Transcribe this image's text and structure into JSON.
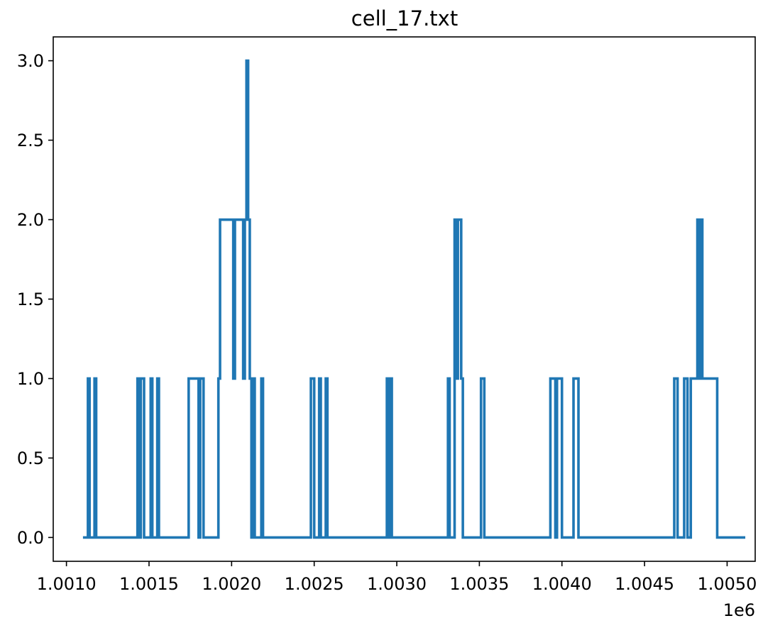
{
  "chart_data": {
    "type": "line",
    "title": "cell_17.txt",
    "xlabel": "",
    "ylabel": "",
    "x_offset_label": "1e6",
    "xlim": [
      1.00092,
      1.00517
    ],
    "ylim": [
      -0.15,
      3.15
    ],
    "grid": false,
    "xticks": [
      1.001,
      1.0015,
      1.002,
      1.0025,
      1.003,
      1.0035,
      1.004,
      1.0045,
      1.005
    ],
    "xtick_labels": [
      "1.0010",
      "1.0015",
      "1.0020",
      "1.0025",
      "1.0030",
      "1.0035",
      "1.0040",
      "1.0045",
      "1.0050"
    ],
    "yticks": [
      0.0,
      0.5,
      1.0,
      1.5,
      2.0,
      2.5,
      3.0
    ],
    "ytick_labels": [
      "0.0",
      "0.5",
      "1.0",
      "1.5",
      "2.0",
      "2.5",
      "3.0"
    ],
    "series": [
      {
        "color": "#1f77b4",
        "step": "post",
        "x": [
          1.0011,
          1.00113,
          1.00114,
          1.00117,
          1.00118,
          1.00143,
          1.00144,
          1.00145,
          1.00147,
          1.00151,
          1.00152,
          1.00155,
          1.00156,
          1.00174,
          1.0018,
          1.00181,
          1.00183,
          1.00192,
          1.00193,
          1.00201,
          1.00202,
          1.00207,
          1.00208,
          1.00209,
          1.0021,
          1.00211,
          1.00212,
          1.00213,
          1.00214,
          1.00218,
          1.00219,
          1.00248,
          1.0025,
          1.00253,
          1.00254,
          1.00257,
          1.00258,
          1.00294,
          1.00295,
          1.00296,
          1.00297,
          1.00298,
          1.00331,
          1.00332,
          1.00335,
          1.00336,
          1.00337,
          1.00339,
          1.0034,
          1.00351,
          1.00353,
          1.00393,
          1.00396,
          1.00397,
          1.004,
          1.00407,
          1.0041,
          1.00468,
          1.0047,
          1.00474,
          1.00476,
          1.00478,
          1.00482,
          1.00483,
          1.00484,
          1.00485,
          1.00494,
          1.00511
        ],
        "y": [
          0,
          1,
          0,
          1,
          0,
          1,
          0,
          1,
          0,
          1,
          0,
          1,
          0,
          1,
          0,
          1,
          0,
          1,
          2,
          1,
          2,
          1,
          2,
          3,
          2,
          1,
          0,
          1,
          0,
          1,
          0,
          1,
          0,
          1,
          0,
          1,
          0,
          1,
          0,
          1,
          0,
          0,
          1,
          0,
          2,
          1,
          2,
          1,
          0,
          1,
          0,
          1,
          0,
          1,
          0,
          1,
          0,
          1,
          0,
          1,
          0,
          1,
          2,
          1,
          2,
          1,
          0,
          0
        ]
      }
    ]
  }
}
